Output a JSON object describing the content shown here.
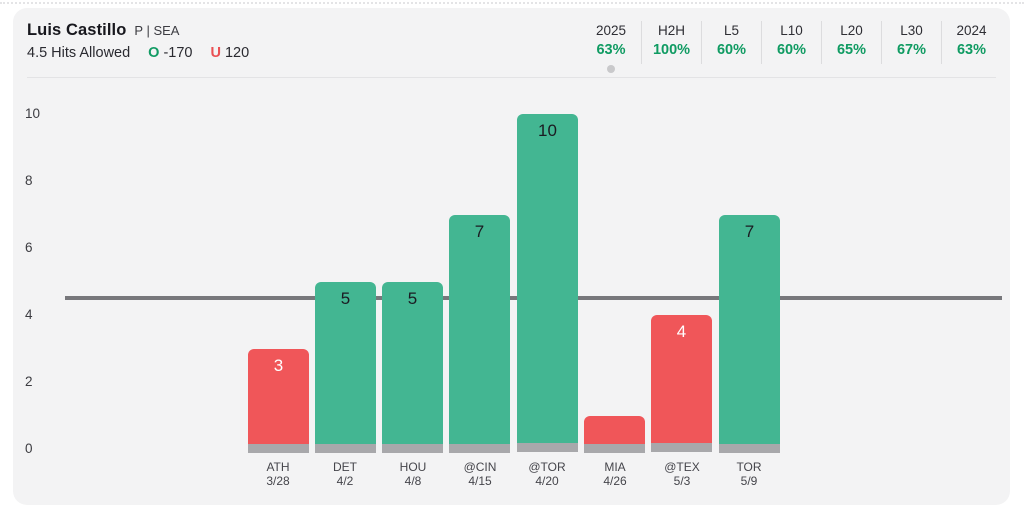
{
  "header": {
    "player": "Luis Castillo",
    "position_team": "P | SEA",
    "prop_line": "4.5 Hits Allowed",
    "over_label": "O",
    "over_odds": "-170",
    "under_label": "U",
    "under_odds": "120"
  },
  "stats": {
    "columns": [
      {
        "label": "2025",
        "value": "63%",
        "active": true
      },
      {
        "label": "H2H",
        "value": "100%",
        "active": false
      },
      {
        "label": "L5",
        "value": "60%",
        "active": false
      },
      {
        "label": "L10",
        "value": "60%",
        "active": false
      },
      {
        "label": "L20",
        "value": "65%",
        "active": false
      },
      {
        "label": "L30",
        "value": "67%",
        "active": false
      },
      {
        "label": "2024",
        "value": "63%",
        "active": false
      }
    ]
  },
  "chart_data": {
    "type": "bar",
    "categories": [
      "ATH 3/28",
      "DET 4/2",
      "HOU 4/8",
      "@CIN 4/15",
      "@TOR 4/20",
      "MIA 4/26",
      "@TEX 5/3",
      "TOR 5/9"
    ],
    "values": [
      3,
      5,
      5,
      7,
      10,
      1,
      4,
      7
    ],
    "games": [
      {
        "opp": "ATH",
        "date": "3/28",
        "value": 3,
        "label": "3",
        "result": "under"
      },
      {
        "opp": "DET",
        "date": "4/2",
        "value": 5,
        "label": "5",
        "result": "over"
      },
      {
        "opp": "HOU",
        "date": "4/8",
        "value": 5,
        "label": "5",
        "result": "over"
      },
      {
        "opp": "@CIN",
        "date": "4/15",
        "value": 7,
        "label": "7",
        "result": "over"
      },
      {
        "opp": "@TOR",
        "date": "4/20",
        "value": 10,
        "label": "10",
        "result": "over"
      },
      {
        "opp": "MIA",
        "date": "4/26",
        "value": 1,
        "label": "",
        "result": "under"
      },
      {
        "opp": "@TEX",
        "date": "5/3",
        "value": 4,
        "label": "4",
        "result": "under"
      },
      {
        "opp": "TOR",
        "date": "5/9",
        "value": 7,
        "label": "7",
        "result": "over"
      }
    ],
    "line_value": 4.5,
    "yticks": [
      0,
      2,
      4,
      6,
      8,
      10
    ],
    "ylim": [
      0,
      10
    ],
    "grid": false,
    "legend": "none"
  },
  "colors": {
    "over_green": "#43b692",
    "under_red": "#f05659",
    "pct_green": "#0f9b62",
    "bar_base_gray": "#a8a8ab",
    "ref_line_gray": "#77777b",
    "card_bg": "#f3f3f4",
    "value_on_green": "#1b1b22",
    "value_on_red": "#ffffff"
  }
}
